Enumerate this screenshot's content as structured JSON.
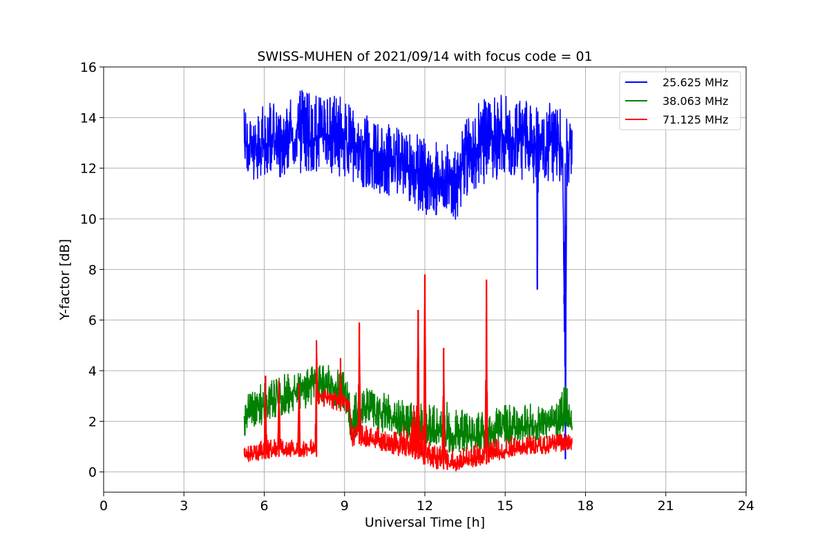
{
  "chart_data": {
    "type": "line",
    "title": "SWISS-MUHEN of 2021/09/14 with focus code = 01",
    "xlabel": "Universal Time [h]",
    "ylabel": "Y-factor [dB]",
    "xlim": [
      0,
      24
    ],
    "ylim": [
      -0.8,
      16
    ],
    "x_ticks": [
      0,
      3,
      6,
      9,
      12,
      15,
      18,
      21,
      24
    ],
    "x_tick_labels": [
      "0",
      "3",
      "6",
      "9",
      "12",
      "15",
      "18",
      "21",
      "24"
    ],
    "y_ticks": [
      0,
      2,
      4,
      6,
      8,
      10,
      12,
      14,
      16
    ],
    "y_tick_labels": [
      "0",
      "2",
      "4",
      "6",
      "8",
      "10",
      "12",
      "14",
      "16"
    ],
    "grid": true,
    "legend_position": "top-right",
    "series": [
      {
        "name": "25.625 MHz",
        "color": "#0000ff",
        "x": [
          5.25,
          5.5,
          6.0,
          6.5,
          7.0,
          7.5,
          8.0,
          8.5,
          9.0,
          9.5,
          10.0,
          10.5,
          11.0,
          11.5,
          12.0,
          12.5,
          13.0,
          13.2,
          13.5,
          14.0,
          14.5,
          15.0,
          15.5,
          16.0,
          16.15,
          16.2,
          16.25,
          16.5,
          17.0,
          17.15,
          17.2,
          17.25,
          17.3,
          17.5
        ],
        "values": [
          13.0,
          12.8,
          13.0,
          12.9,
          13.2,
          13.1,
          13.3,
          13.2,
          13.0,
          12.9,
          12.7,
          12.5,
          12.3,
          12.0,
          11.8,
          11.5,
          11.6,
          11.2,
          12.5,
          12.8,
          13.2,
          13.3,
          13.1,
          12.9,
          12.8,
          7.2,
          12.9,
          13.0,
          13.0,
          12.8,
          7.0,
          0.5,
          12.5,
          13.0
        ],
        "upper": [
          14.8,
          14.5,
          14.6,
          14.7,
          14.8,
          15.3,
          15.0,
          15.1,
          14.7,
          14.2,
          14.1,
          13.8,
          13.6,
          13.5,
          13.2,
          13.0,
          12.9,
          12.6,
          14.0,
          14.6,
          14.9,
          15.0,
          14.8,
          14.6,
          14.5,
          14.4,
          14.5,
          14.6,
          14.7,
          14.4,
          14.0,
          13.6,
          14.0,
          13.6
        ],
        "lower": [
          12.2,
          11.5,
          11.6,
          11.6,
          11.8,
          11.7,
          11.8,
          11.7,
          11.6,
          11.3,
          11.2,
          10.9,
          10.8,
          10.6,
          10.1,
          10.0,
          10.2,
          9.8,
          10.8,
          11.3,
          11.5,
          11.6,
          11.6,
          11.4,
          11.4,
          7.2,
          11.4,
          11.3,
          11.5,
          11.3,
          7.0,
          0.0,
          10.0,
          12.0
        ]
      },
      {
        "name": "38.063 MHz",
        "color": "#008000",
        "x": [
          5.25,
          5.5,
          6.0,
          6.5,
          7.0,
          7.5,
          8.0,
          8.5,
          9.0,
          9.25,
          9.5,
          10.0,
          10.5,
          11.0,
          11.5,
          12.0,
          12.5,
          13.0,
          13.5,
          14.0,
          14.5,
          15.0,
          15.5,
          16.0,
          16.5,
          17.0,
          17.25,
          17.5
        ],
        "values": [
          2.0,
          2.3,
          2.6,
          2.9,
          3.1,
          3.3,
          3.5,
          3.4,
          3.2,
          1.8,
          2.3,
          2.5,
          2.3,
          2.1,
          1.9,
          1.8,
          1.6,
          1.4,
          1.4,
          1.3,
          1.5,
          1.7,
          1.8,
          1.8,
          1.9,
          1.9,
          2.0,
          2.0
        ],
        "upper": [
          3.1,
          3.3,
          3.6,
          3.8,
          3.9,
          4.0,
          4.3,
          4.2,
          4.0,
          3.0,
          3.3,
          3.4,
          3.1,
          2.9,
          2.8,
          2.7,
          2.6,
          3.0,
          2.3,
          2.4,
          2.5,
          2.7,
          2.6,
          2.7,
          2.5,
          2.8,
          3.9,
          2.3
        ],
        "lower": [
          1.4,
          1.7,
          1.9,
          2.1,
          2.3,
          2.5,
          2.7,
          2.6,
          2.4,
          1.1,
          1.5,
          1.8,
          1.5,
          1.4,
          1.2,
          1.1,
          0.9,
          0.7,
          0.8,
          0.7,
          0.9,
          1.1,
          1.2,
          1.2,
          1.3,
          1.3,
          1.5,
          1.5
        ]
      },
      {
        "name": "71.125 MHz",
        "color": "#ff0000",
        "x": [
          5.25,
          5.5,
          6.0,
          6.05,
          6.1,
          6.5,
          6.55,
          6.6,
          7.0,
          7.25,
          7.3,
          7.35,
          7.9,
          7.95,
          8.0,
          8.5,
          8.8,
          8.85,
          8.9,
          9.2,
          9.25,
          9.5,
          9.55,
          9.6,
          10.0,
          10.5,
          11.0,
          11.5,
          11.7,
          11.75,
          11.8,
          11.95,
          12.0,
          12.05,
          12.5,
          12.65,
          12.7,
          12.75,
          13.0,
          13.5,
          13.9,
          14.25,
          14.3,
          14.35,
          14.5,
          15.0,
          15.5,
          16.0,
          16.5,
          17.0,
          17.5
        ],
        "values": [
          0.6,
          0.7,
          0.8,
          3.8,
          0.8,
          0.9,
          3.6,
          0.9,
          0.9,
          0.9,
          3.5,
          0.9,
          0.9,
          5.2,
          3.0,
          2.9,
          2.8,
          4.5,
          2.8,
          2.7,
          1.4,
          1.5,
          5.9,
          1.4,
          1.3,
          1.1,
          1.0,
          0.9,
          0.9,
          6.4,
          0.8,
          0.7,
          7.8,
          0.6,
          0.5,
          0.4,
          4.9,
          0.4,
          0.3,
          0.4,
          0.5,
          0.6,
          7.6,
          0.6,
          0.7,
          0.8,
          0.9,
          1.0,
          1.0,
          1.1,
          1.1
        ],
        "upper": [
          1.0,
          1.1,
          1.3,
          3.8,
          1.3,
          1.3,
          3.6,
          1.3,
          1.3,
          1.3,
          3.5,
          1.3,
          1.3,
          5.2,
          3.3,
          3.2,
          3.1,
          4.5,
          3.1,
          3.0,
          1.8,
          2.0,
          5.9,
          1.9,
          1.8,
          1.7,
          1.6,
          2.4,
          3.3,
          6.4,
          1.8,
          2.2,
          7.8,
          1.2,
          1.1,
          1.0,
          4.9,
          1.0,
          0.9,
          1.0,
          1.1,
          1.2,
          7.6,
          1.2,
          1.3,
          1.4,
          1.4,
          1.5,
          1.5,
          1.5,
          1.5
        ],
        "lower": [
          0.4,
          0.4,
          0.5,
          0.5,
          0.5,
          0.6,
          0.6,
          0.6,
          0.6,
          0.6,
          0.6,
          0.6,
          0.6,
          0.6,
          2.6,
          2.5,
          2.4,
          2.4,
          2.4,
          2.3,
          1.0,
          1.1,
          1.1,
          1.0,
          1.0,
          0.8,
          0.6,
          0.5,
          0.5,
          0.5,
          0.4,
          0.3,
          0.3,
          0.2,
          0.1,
          0.1,
          0.1,
          0.1,
          0.0,
          0.1,
          0.2,
          0.3,
          0.3,
          0.3,
          0.4,
          0.5,
          0.6,
          0.7,
          0.7,
          0.8,
          0.8
        ]
      }
    ]
  }
}
